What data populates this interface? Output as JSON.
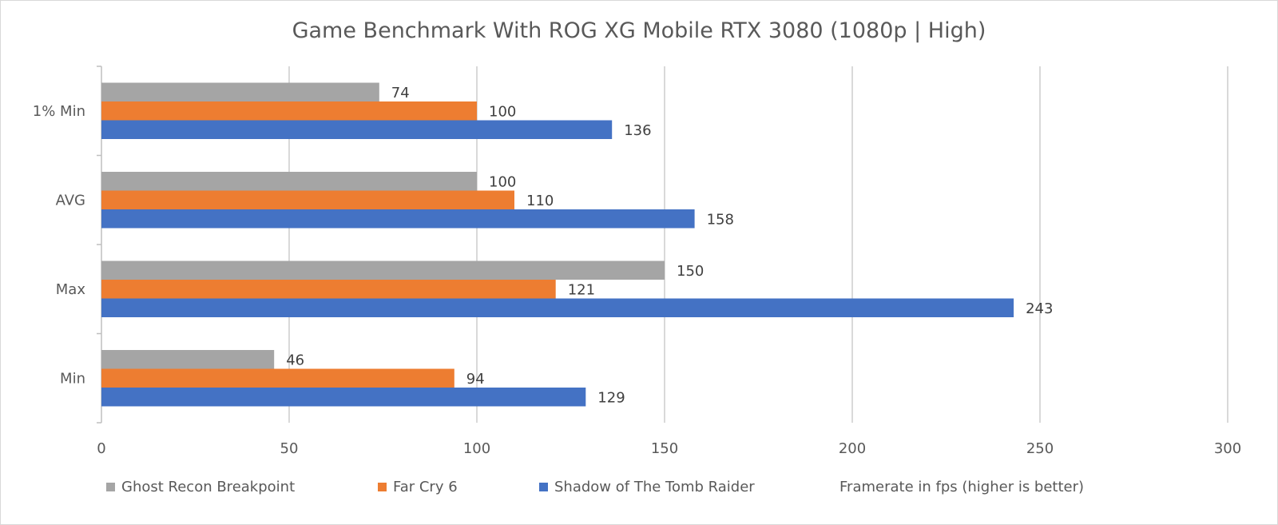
{
  "chart_data": {
    "type": "bar",
    "orientation": "horizontal",
    "title": "Game Benchmark With ROG XG Mobile RTX 3080 (1080p | High)",
    "categories": [
      "1% Min",
      "AVG",
      "Max",
      "Min"
    ],
    "series": [
      {
        "name": "Ghost Recon Breakpoint",
        "color": "#a5a5a5",
        "values": [
          74,
          100,
          150,
          46
        ]
      },
      {
        "name": "Far Cry 6",
        "color": "#ed7d31",
        "values": [
          100,
          110,
          121,
          94
        ]
      },
      {
        "name": "Shadow of The Tomb Raider",
        "color": "#4472c4",
        "values": [
          136,
          158,
          243,
          129
        ]
      }
    ],
    "xlim": [
      0,
      300
    ],
    "x_ticks": [
      0,
      50,
      100,
      150,
      200,
      250,
      300
    ],
    "grid": true,
    "legend_position": "bottom",
    "legend_note": "Framerate in fps (higher is better)"
  }
}
